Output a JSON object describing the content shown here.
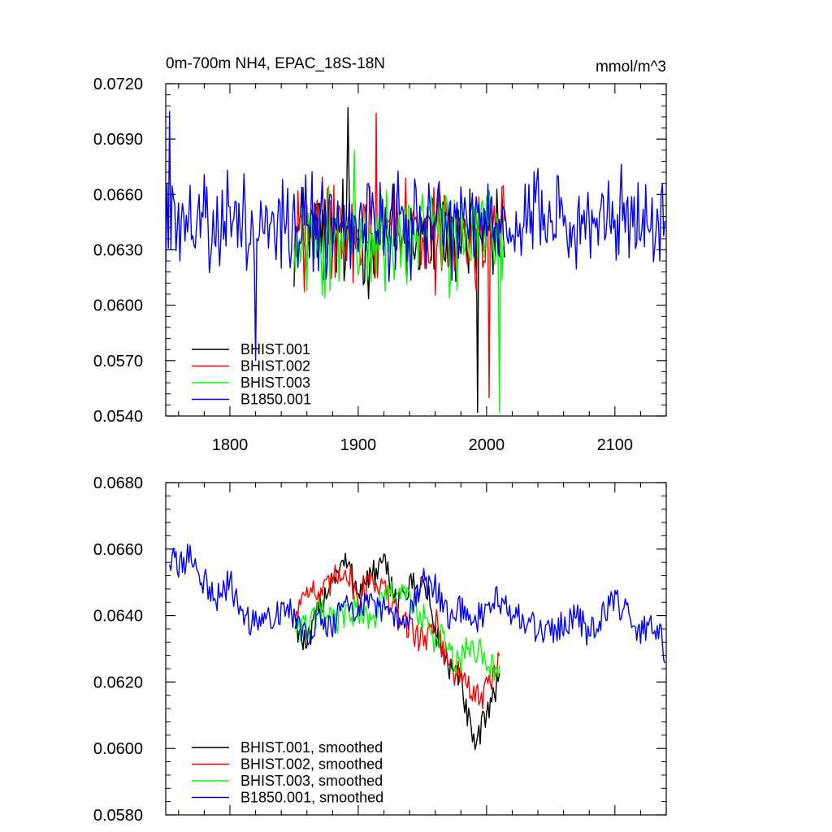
{
  "chart_data": [
    {
      "type": "line",
      "title": "0m-700m NH4, EPAC_18S-18N",
      "units": "mmol/m^3",
      "xlim": [
        1750,
        2140
      ],
      "ylim": [
        0.054,
        0.072
      ],
      "xticks": [
        "1800",
        "1900",
        "2000",
        "2100"
      ],
      "yticks": [
        "0.0540",
        "0.0570",
        "0.0600",
        "0.0630",
        "0.0660",
        "0.0690",
        "0.0720"
      ],
      "grid": false,
      "legend": "bottom-left",
      "series": [
        {
          "name": "BHIST.001",
          "color": "#000000",
          "x_range": [
            1850,
            2014
          ],
          "mean": 0.0638,
          "spread": 0.0024,
          "min_point": [
            1993,
            0.0542
          ],
          "max_point": [
            1892,
            0.0707
          ]
        },
        {
          "name": "BHIST.002",
          "color": "#ff0000",
          "x_range": [
            1850,
            2014
          ],
          "mean": 0.0638,
          "spread": 0.0022,
          "min_point": [
            2002,
            0.055
          ],
          "max_point": [
            1914,
            0.0704
          ]
        },
        {
          "name": "BHIST.003",
          "color": "#00ff00",
          "x_range": [
            1850,
            2014
          ],
          "mean": 0.0637,
          "spread": 0.0021,
          "min_point": [
            2010,
            0.0542
          ],
          "max_point": [
            1897,
            0.0684
          ]
        },
        {
          "name": "B1850.001",
          "color": "#0000ff",
          "x_range": [
            1750,
            2139
          ],
          "mean": 0.0644,
          "spread": 0.002,
          "min_point": [
            1820,
            0.057
          ],
          "max_point": [
            1753,
            0.0705
          ]
        }
      ]
    },
    {
      "type": "line",
      "xlim": [
        1750,
        2140
      ],
      "ylim": [
        0.058,
        0.068
      ],
      "yticks": [
        "0.0580",
        "0.0600",
        "0.0620",
        "0.0640",
        "0.0660",
        "0.0680"
      ],
      "grid": false,
      "legend": "bottom-left",
      "series": [
        {
          "name": "BHIST.001, smoothed",
          "color": "#000000",
          "x": [
            1851,
            1860,
            1870,
            1880,
            1890,
            1900,
            1910,
            1920,
            1930,
            1940,
            1950,
            1955,
            1960,
            1965,
            1970,
            1975,
            1980,
            1985,
            1990,
            1995,
            2000,
            2005,
            2010
          ],
          "y": [
            0.0638,
            0.063,
            0.0643,
            0.0652,
            0.0656,
            0.0648,
            0.0652,
            0.0655,
            0.0645,
            0.0648,
            0.065,
            0.0645,
            0.0635,
            0.063,
            0.0625,
            0.0622,
            0.062,
            0.061,
            0.06,
            0.0604,
            0.0612,
            0.0616,
            0.062
          ]
        },
        {
          "name": "BHIST.002, smoothed",
          "color": "#ff0000",
          "x": [
            1851,
            1860,
            1870,
            1880,
            1890,
            1900,
            1910,
            1920,
            1930,
            1940,
            1950,
            1955,
            1960,
            1965,
            1970,
            1975,
            1980,
            1985,
            1990,
            1995,
            2000,
            2005,
            2010
          ],
          "y": [
            0.064,
            0.065,
            0.0645,
            0.065,
            0.0655,
            0.0645,
            0.0652,
            0.0648,
            0.064,
            0.0637,
            0.0632,
            0.0635,
            0.064,
            0.0632,
            0.0626,
            0.0623,
            0.0622,
            0.062,
            0.0616,
            0.0614,
            0.0618,
            0.0622,
            0.0626
          ]
        },
        {
          "name": "BHIST.003, smoothed",
          "color": "#00ff00",
          "x": [
            1851,
            1860,
            1870,
            1880,
            1890,
            1900,
            1910,
            1920,
            1930,
            1940,
            1950,
            1955,
            1960,
            1965,
            1970,
            1975,
            1980,
            1985,
            1990,
            1995,
            2000,
            2005,
            2010
          ],
          "y": [
            0.0637,
            0.0636,
            0.0641,
            0.0638,
            0.064,
            0.0642,
            0.0638,
            0.0645,
            0.0648,
            0.0644,
            0.064,
            0.0635,
            0.0632,
            0.0634,
            0.063,
            0.0625,
            0.0627,
            0.063,
            0.0628,
            0.063,
            0.0624,
            0.0625,
            0.0624
          ]
        },
        {
          "name": "B1850.001, smoothed",
          "color": "#0000ff",
          "x": [
            1753,
            1760,
            1770,
            1780,
            1790,
            1800,
            1810,
            1820,
            1830,
            1840,
            1850,
            1860,
            1870,
            1880,
            1890,
            1900,
            1910,
            1920,
            1930,
            1940,
            1950,
            1960,
            1970,
            1980,
            1990,
            2000,
            2010,
            2020,
            2030,
            2040,
            2050,
            2060,
            2070,
            2080,
            2090,
            2100,
            2110,
            2120,
            2130,
            2139
          ],
          "y": [
            0.0657,
            0.0655,
            0.0658,
            0.065,
            0.0645,
            0.065,
            0.064,
            0.0637,
            0.064,
            0.0642,
            0.064,
            0.0635,
            0.064,
            0.0636,
            0.0645,
            0.064,
            0.0645,
            0.0642,
            0.0638,
            0.064,
            0.065,
            0.0648,
            0.064,
            0.0642,
            0.0638,
            0.0642,
            0.0645,
            0.064,
            0.0638,
            0.0636,
            0.0635,
            0.0638,
            0.064,
            0.0634,
            0.064,
            0.0645,
            0.064,
            0.0635,
            0.0638,
            0.063
          ]
        }
      ]
    }
  ]
}
